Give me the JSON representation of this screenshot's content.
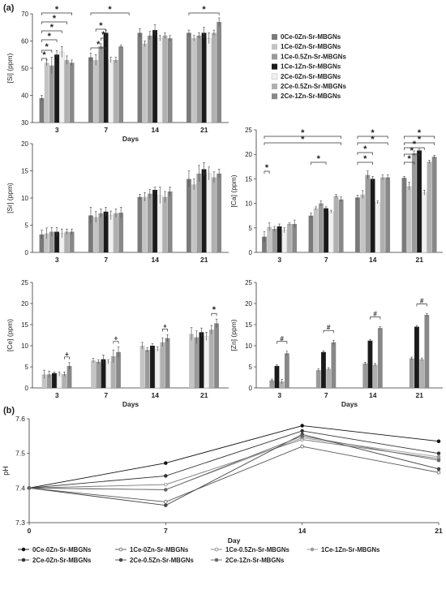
{
  "panel_labels": {
    "a": "(a)",
    "b": "(b)"
  },
  "colors": {
    "0Ce-0Zn-Sr-MBGNs": "#7a7a7a",
    "1Ce-0Zn-Sr-MBGNs": "#c4c4c4",
    "1Ce-0.5Zn-Sr-MBGNs": "#9a9a9a",
    "1Ce-1Zn-Sr-MBGNs": "#1a1a1a",
    "2Ce-0Zn-Sr-MBGNs": "#f0f0f0",
    "2Ce-0.5Zn-Sr-MBGNs": "#b0b0b0",
    "2Ce-1Zn-Sr-MBGNs": "#888888",
    "line_colors": [
      "#111111",
      "#555555",
      "#777777",
      "#999999",
      "#333333",
      "#444444",
      "#666666"
    ]
  },
  "chart_data": [
    {
      "type": "bar",
      "ylabel": "[Si] (ppm)",
      "xlabel": "Days",
      "categories": [
        "3",
        "7",
        "14",
        "21"
      ],
      "ylim": [
        30,
        70
      ],
      "yticks": [
        30,
        40,
        50,
        60,
        70
      ],
      "series": [
        {
          "name": "0Ce-0Zn-Sr-MBGNs",
          "values": [
            39,
            54,
            63,
            63
          ],
          "errors": [
            1,
            1.5,
            1.5,
            1
          ]
        },
        {
          "name": "1Ce-0Zn-Sr-MBGNs",
          "values": [
            52,
            53,
            59,
            61
          ],
          "errors": [
            1,
            2,
            1,
            1
          ]
        },
        {
          "name": "1Ce-0.5Zn-Sr-MBGNs",
          "values": [
            51,
            58,
            62,
            62
          ],
          "errors": [
            3,
            1,
            1.5,
            1
          ]
        },
        {
          "name": "1Ce-1Zn-Sr-MBGNs",
          "values": [
            55,
            63,
            64,
            63
          ],
          "errors": [
            1.5,
            1,
            2,
            2
          ]
        },
        {
          "name": "2Ce-0Zn-Sr-MBGNs",
          "values": [
            56,
            53,
            61,
            61
          ],
          "errors": [
            2,
            1,
            1,
            2
          ]
        },
        {
          "name": "2Ce-0.5Zn-Sr-MBGNs",
          "values": [
            53,
            53,
            62,
            63
          ],
          "errors": [
            1.5,
            1,
            1,
            1
          ]
        },
        {
          "name": "2Ce-1Zn-Sr-MBGNs",
          "values": [
            52,
            58,
            61,
            67
          ],
          "errors": [
            1,
            0.5,
            1,
            1.5
          ]
        }
      ],
      "annotations": [
        "*",
        "*",
        "*",
        "*",
        "*",
        "*",
        "*",
        "*",
        "*",
        "*"
      ]
    },
    {
      "type": "bar",
      "ylabel": "[Sr] (ppm)",
      "categories": [
        "3",
        "7",
        "14",
        "21"
      ],
      "ylim": [
        0,
        20
      ],
      "yticks": [
        0,
        5,
        10,
        15,
        20
      ],
      "series": [
        {
          "name": "0Ce-0Zn-Sr-MBGNs",
          "values": [
            3.3,
            6.8,
            10.2,
            13.5
          ],
          "errors": [
            0.8,
            1.5,
            0.5,
            1.5
          ]
        },
        {
          "name": "1Ce-0Zn-Sr-MBGNs",
          "values": [
            3.5,
            6.5,
            10.2,
            12.5
          ],
          "errors": [
            1,
            1,
            0.8,
            1
          ]
        },
        {
          "name": "1Ce-0.5Zn-Sr-MBGNs",
          "values": [
            3.8,
            7.2,
            10.8,
            14.5
          ],
          "errors": [
            0.8,
            0.8,
            0.8,
            1.5
          ]
        },
        {
          "name": "1Ce-1Zn-Sr-MBGNs",
          "values": [
            3.8,
            7.5,
            11.5,
            15.3
          ],
          "errors": [
            0.8,
            0.8,
            0.5,
            1.2
          ]
        },
        {
          "name": "2Ce-0Zn-Sr-MBGNs",
          "values": [
            3.5,
            6.8,
            10.5,
            14.5
          ],
          "errors": [
            0.8,
            0.8,
            1.5,
            1.2
          ]
        },
        {
          "name": "2Ce-0.5Zn-Sr-MBGNs",
          "values": [
            3.8,
            7.2,
            10.2,
            13.8
          ],
          "errors": [
            0.5,
            0.8,
            1,
            1
          ]
        },
        {
          "name": "2Ce-1Zn-Sr-MBGNs",
          "values": [
            3.8,
            7.3,
            11.2,
            14.5
          ],
          "errors": [
            0.5,
            1,
            0.8,
            0.8
          ]
        }
      ]
    },
    {
      "type": "bar",
      "ylabel": "[Ca] (ppm)",
      "categories": [
        "3",
        "7",
        "14",
        "21"
      ],
      "ylim": [
        0,
        25
      ],
      "yticks": [
        0,
        5,
        10,
        15,
        20,
        25
      ],
      "series": [
        {
          "name": "0Ce-0Zn-Sr-MBGNs",
          "values": [
            3.2,
            7.5,
            11.2,
            15.2
          ],
          "errors": [
            1,
            0.5,
            0.5,
            0.3
          ]
        },
        {
          "name": "1Ce-0Zn-Sr-MBGNs",
          "values": [
            5.2,
            9.0,
            11.8,
            13.5
          ],
          "errors": [
            0.8,
            0.3,
            0.8,
            0.8
          ]
        },
        {
          "name": "1Ce-0.5Zn-Sr-MBGNs",
          "values": [
            4.8,
            10.0,
            15.8,
            20.2
          ],
          "errors": [
            0.5,
            0.5,
            0.8,
            0.5
          ]
        },
        {
          "name": "1Ce-1Zn-Sr-MBGNs",
          "values": [
            5.3,
            9.0,
            15.0,
            20.8
          ],
          "errors": [
            0.5,
            0.3,
            0.5,
            0.3
          ]
        },
        {
          "name": "2Ce-0Zn-Sr-MBGNs",
          "values": [
            4.5,
            8.3,
            10.2,
            12.2
          ],
          "errors": [
            0.5,
            0.3,
            0.3,
            0.5
          ]
        },
        {
          "name": "2Ce-0.5Zn-Sr-MBGNs",
          "values": [
            5.8,
            11.5,
            15.3,
            18.5
          ],
          "errors": [
            0.3,
            0.3,
            0.5,
            0.3
          ]
        },
        {
          "name": "2Ce-1Zn-Sr-MBGNs",
          "values": [
            5.8,
            10.8,
            15.3,
            19.5
          ],
          "errors": [
            0.8,
            0.5,
            0.5,
            0.3
          ]
        }
      ],
      "annotations": [
        "*",
        "*",
        "*",
        "*",
        "*",
        "*",
        "*",
        "*",
        "*",
        "*",
        "*",
        "*",
        "*"
      ]
    },
    {
      "type": "bar",
      "ylabel": "[Ce] (ppm)",
      "xlabel": "Days",
      "categories": [
        "3",
        "7",
        "14",
        "21"
      ],
      "ylim": [
        0,
        25
      ],
      "yticks": [
        0,
        5,
        10,
        15,
        20,
        25
      ],
      "series": [
        {
          "name": "1Ce-0Zn-Sr-MBGNs",
          "values": [
            3.2,
            6.5,
            10.0,
            12.8
          ],
          "errors": [
            1,
            0.5,
            0.8,
            1.5
          ]
        },
        {
          "name": "1Ce-0.5Zn-Sr-MBGNs",
          "values": [
            3.2,
            6.2,
            9.0,
            12.0
          ],
          "errors": [
            0.8,
            0.5,
            0.5,
            1.5
          ]
        },
        {
          "name": "1Ce-1Zn-Sr-MBGNs",
          "values": [
            3.5,
            6.8,
            10.0,
            13.2
          ],
          "errors": [
            0.3,
            1,
            0.5,
            1
          ]
        },
        {
          "name": "2Ce-0Zn-Sr-MBGNs",
          "values": [
            3.3,
            6.2,
            9.2,
            12.2
          ],
          "errors": [
            0.5,
            0.5,
            0.5,
            1
          ]
        },
        {
          "name": "2Ce-0.5Zn-Sr-MBGNs",
          "values": [
            3.3,
            7.5,
            10.8,
            13.8
          ],
          "errors": [
            0.5,
            1.5,
            1,
            1
          ]
        },
        {
          "name": "2Ce-1Zn-Sr-MBGNs",
          "values": [
            5.2,
            8.5,
            11.8,
            15.3
          ],
          "errors": [
            0.8,
            1.2,
            0.8,
            1
          ]
        }
      ],
      "annotations": [
        "+",
        "+",
        "+",
        "*"
      ]
    },
    {
      "type": "bar",
      "ylabel": "[Zn] (ppm)",
      "xlabel": "Days",
      "categories": [
        "3",
        "7",
        "14",
        "21"
      ],
      "ylim": [
        0,
        25
      ],
      "yticks": [
        0,
        5,
        10,
        15,
        20,
        25
      ],
      "series": [
        {
          "name": "1Ce-0.5Zn-Sr-MBGNs",
          "values": [
            1.8,
            4.2,
            5.8,
            7.0
          ],
          "errors": [
            0.3,
            0.3,
            0.3,
            0.3
          ]
        },
        {
          "name": "1Ce-1Zn-Sr-MBGNs",
          "values": [
            5.2,
            8.5,
            11.2,
            14.5
          ],
          "errors": [
            0.3,
            0.3,
            0.3,
            0.3
          ]
        },
        {
          "name": "2Ce-0.5Zn-Sr-MBGNs",
          "values": [
            1.5,
            4.5,
            5.5,
            6.8
          ],
          "errors": [
            0.5,
            0.3,
            0.3,
            0.3
          ]
        },
        {
          "name": "2Ce-1Zn-Sr-MBGNs",
          "values": [
            8.2,
            10.8,
            14.2,
            17.3
          ],
          "errors": [
            0.5,
            0.5,
            0.3,
            0.3
          ]
        }
      ],
      "annotations": [
        "#",
        "#",
        "#",
        "#"
      ]
    },
    {
      "type": "line",
      "ylabel": "pH",
      "xlabel": "Day",
      "x": [
        0,
        7,
        14,
        21
      ],
      "xticks": [
        0,
        7,
        14,
        21
      ],
      "ylim": [
        7.3,
        7.6
      ],
      "yticks": [
        "7.3",
        "7.4",
        "7.5",
        "7.6"
      ],
      "legend_position": "bottom",
      "series": [
        {
          "name": "0Ce-0Zn-Sr-MBGNs",
          "values": [
            7.4,
            7.472,
            7.58,
            7.535
          ]
        },
        {
          "name": "1Ce-0Zn-Sr-MBGNs",
          "values": [
            7.4,
            7.36,
            7.52,
            7.445
          ]
        },
        {
          "name": "1Ce-0.5Zn-Sr-MBGNs",
          "values": [
            7.4,
            7.41,
            7.54,
            7.485
          ]
        },
        {
          "name": "1Ce-1Zn-Sr-MBGNs",
          "values": [
            7.4,
            7.395,
            7.545,
            7.49
          ]
        },
        {
          "name": "2Ce-0Zn-Sr-MBGNs",
          "values": [
            7.4,
            7.435,
            7.565,
            7.5
          ]
        },
        {
          "name": "2Ce-0.5Zn-Sr-MBGNs",
          "values": [
            7.4,
            7.35,
            7.555,
            7.455
          ]
        },
        {
          "name": "2Ce-1Zn-Sr-MBGNs",
          "values": [
            7.4,
            7.395,
            7.55,
            7.48
          ]
        }
      ]
    }
  ]
}
